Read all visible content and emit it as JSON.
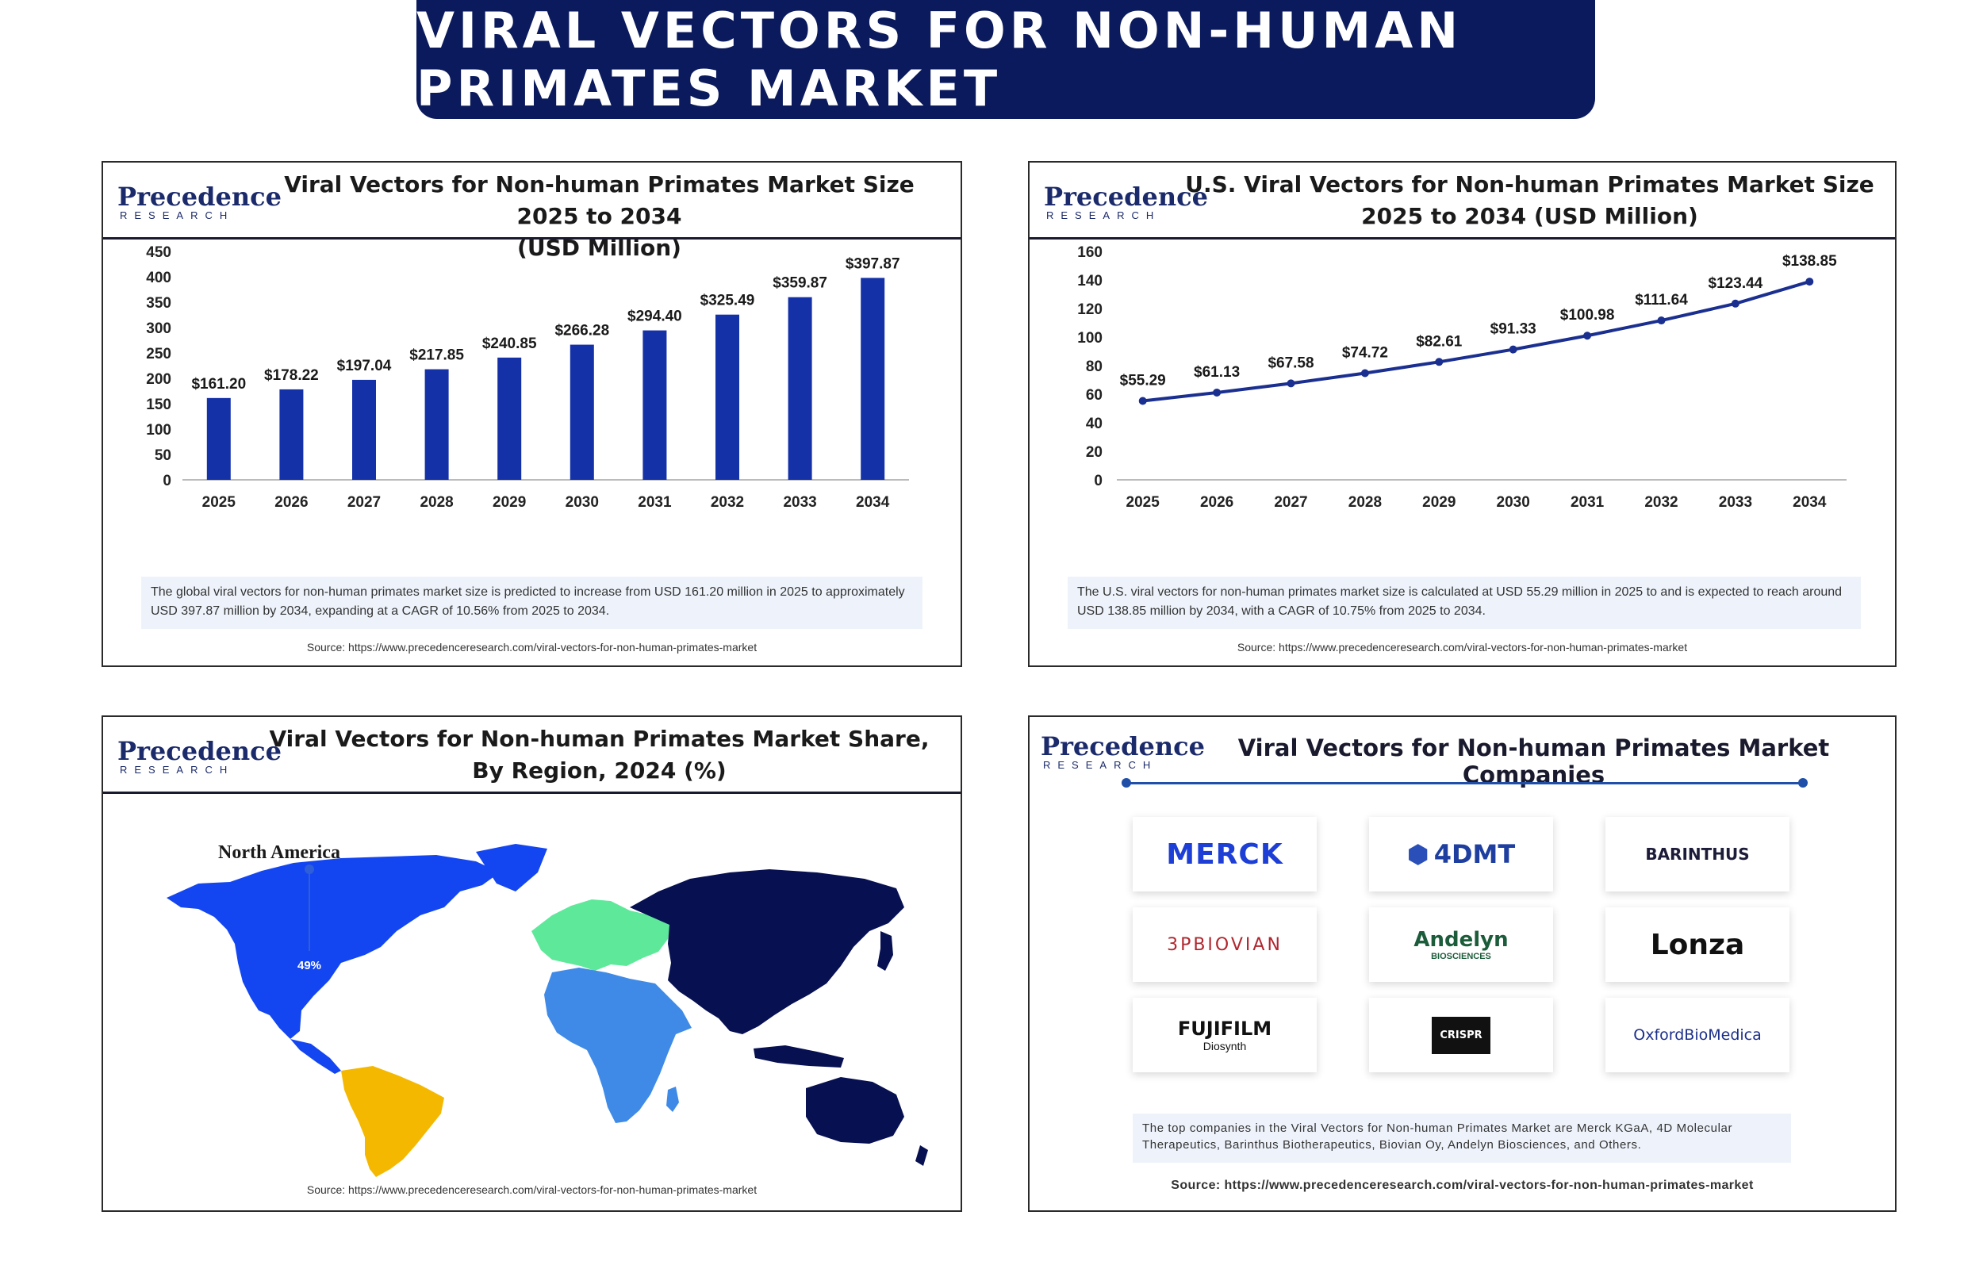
{
  "banner": {
    "title": "VIRAL VECTORS FOR NON-HUMAN PRIMATES MARKET"
  },
  "logo": {
    "line1": "Precedence",
    "line2": "RESEARCH"
  },
  "panel1": {
    "title_line1": "Viral Vectors for Non-human Primates Market Size 2025 to 2034",
    "title_line2": "(USD Million)",
    "note": "The global viral vectors for non-human primates market size is predicted to increase from USD 161.20 million in 2025 to approximately USD 397.87 million by 2034, expanding at a CAGR of 10.56% from 2025 to 2034.",
    "source": "Source: https://www.precedenceresearch.com/viral-vectors-for-non-human-primates-market"
  },
  "panel2": {
    "title_line1": "U.S. Viral Vectors for Non-human Primates Market Size",
    "title_line2": "2025 to 2034 (USD Million)",
    "note": "The U.S. viral vectors for non-human primates market size is calculated at USD 55.29 million in 2025 to and is expected to reach around USD 138.85 million by 2034, with a CAGR of 10.75% from 2025 to 2034.",
    "source": "Source: https://www.precedenceresearch.com/viral-vectors-for-non-human-primates-market"
  },
  "panel3": {
    "title_line1": "Viral Vectors for Non-human Primates Market Share,",
    "title_line2": "By Region, 2024 (%)",
    "region_label": "North America",
    "region_value": "49%",
    "source": "Source: https://www.precedenceresearch.com/viral-vectors-for-non-human-primates-market"
  },
  "panel4": {
    "title": "Viral Vectors for Non-human Primates Market Companies",
    "companies": {
      "merck": "MERCK",
      "fourd": "4DMT",
      "barinthus": "BARINTHUS",
      "biovian": "3PBIOVIAN",
      "andelyn": "Andelyn",
      "andelyn_sub": "BIOSCIENCES",
      "lonza": "Lonza",
      "fuji": "FUJIFILM",
      "fuji_sub": "Diosynth",
      "crispr": "CRISPR",
      "oxford": "OxfordBioMedica"
    },
    "note": "The top companies in the Viral Vectors for Non-human Primates Market are Merck KGaA, 4D Molecular Therapeutics, Barinthus Biotherapeutics, Biovian Oy, Andelyn Biosciences, and Others.",
    "source": "Source: https://www.precedenceresearch.com/viral-vectors-for-non-human-primates-market"
  },
  "colors": {
    "banner": "#0b1a5c",
    "bar": "#1531a8",
    "line": "#1a2f8f",
    "north_america": "#1346f0",
    "south_america": "#f5b800",
    "europe": "#5ee89a",
    "africa_me": "#3f8ae6",
    "asia_pacific": "#071050"
  },
  "chart_data": [
    {
      "type": "bar",
      "categories": [
        "2025",
        "2026",
        "2027",
        "2028",
        "2029",
        "2030",
        "2031",
        "2032",
        "2033",
        "2034"
      ],
      "values": [
        161.2,
        178.22,
        197.04,
        217.85,
        240.85,
        266.28,
        294.4,
        325.49,
        359.87,
        397.87
      ],
      "labels": [
        "$161.20",
        "$178.22",
        "$197.04",
        "$217.85",
        "$240.85",
        "$266.28",
        "$294.40",
        "$325.49",
        "$359.87",
        "$397.87"
      ],
      "yticks": [
        "0",
        "50",
        "100",
        "150",
        "200",
        "250",
        "300",
        "350",
        "400",
        "450"
      ],
      "ylim": [
        0,
        450
      ],
      "grid": false
    },
    {
      "type": "line",
      "categories": [
        "2025",
        "2026",
        "2027",
        "2028",
        "2029",
        "2030",
        "2031",
        "2032",
        "2033",
        "2034"
      ],
      "values": [
        55.29,
        61.13,
        67.58,
        74.72,
        82.61,
        91.33,
        100.98,
        111.64,
        123.44,
        138.85
      ],
      "labels": [
        "$55.29",
        "$61.13",
        "$67.58",
        "$74.72",
        "$82.61",
        "$91.33",
        "$100.98",
        "$111.64",
        "$123.44",
        "$138.85"
      ],
      "yticks": [
        "0",
        "20",
        "40",
        "60",
        "80",
        "100",
        "120",
        "140",
        "160"
      ],
      "ylim": [
        0,
        160
      ],
      "grid": false
    }
  ]
}
